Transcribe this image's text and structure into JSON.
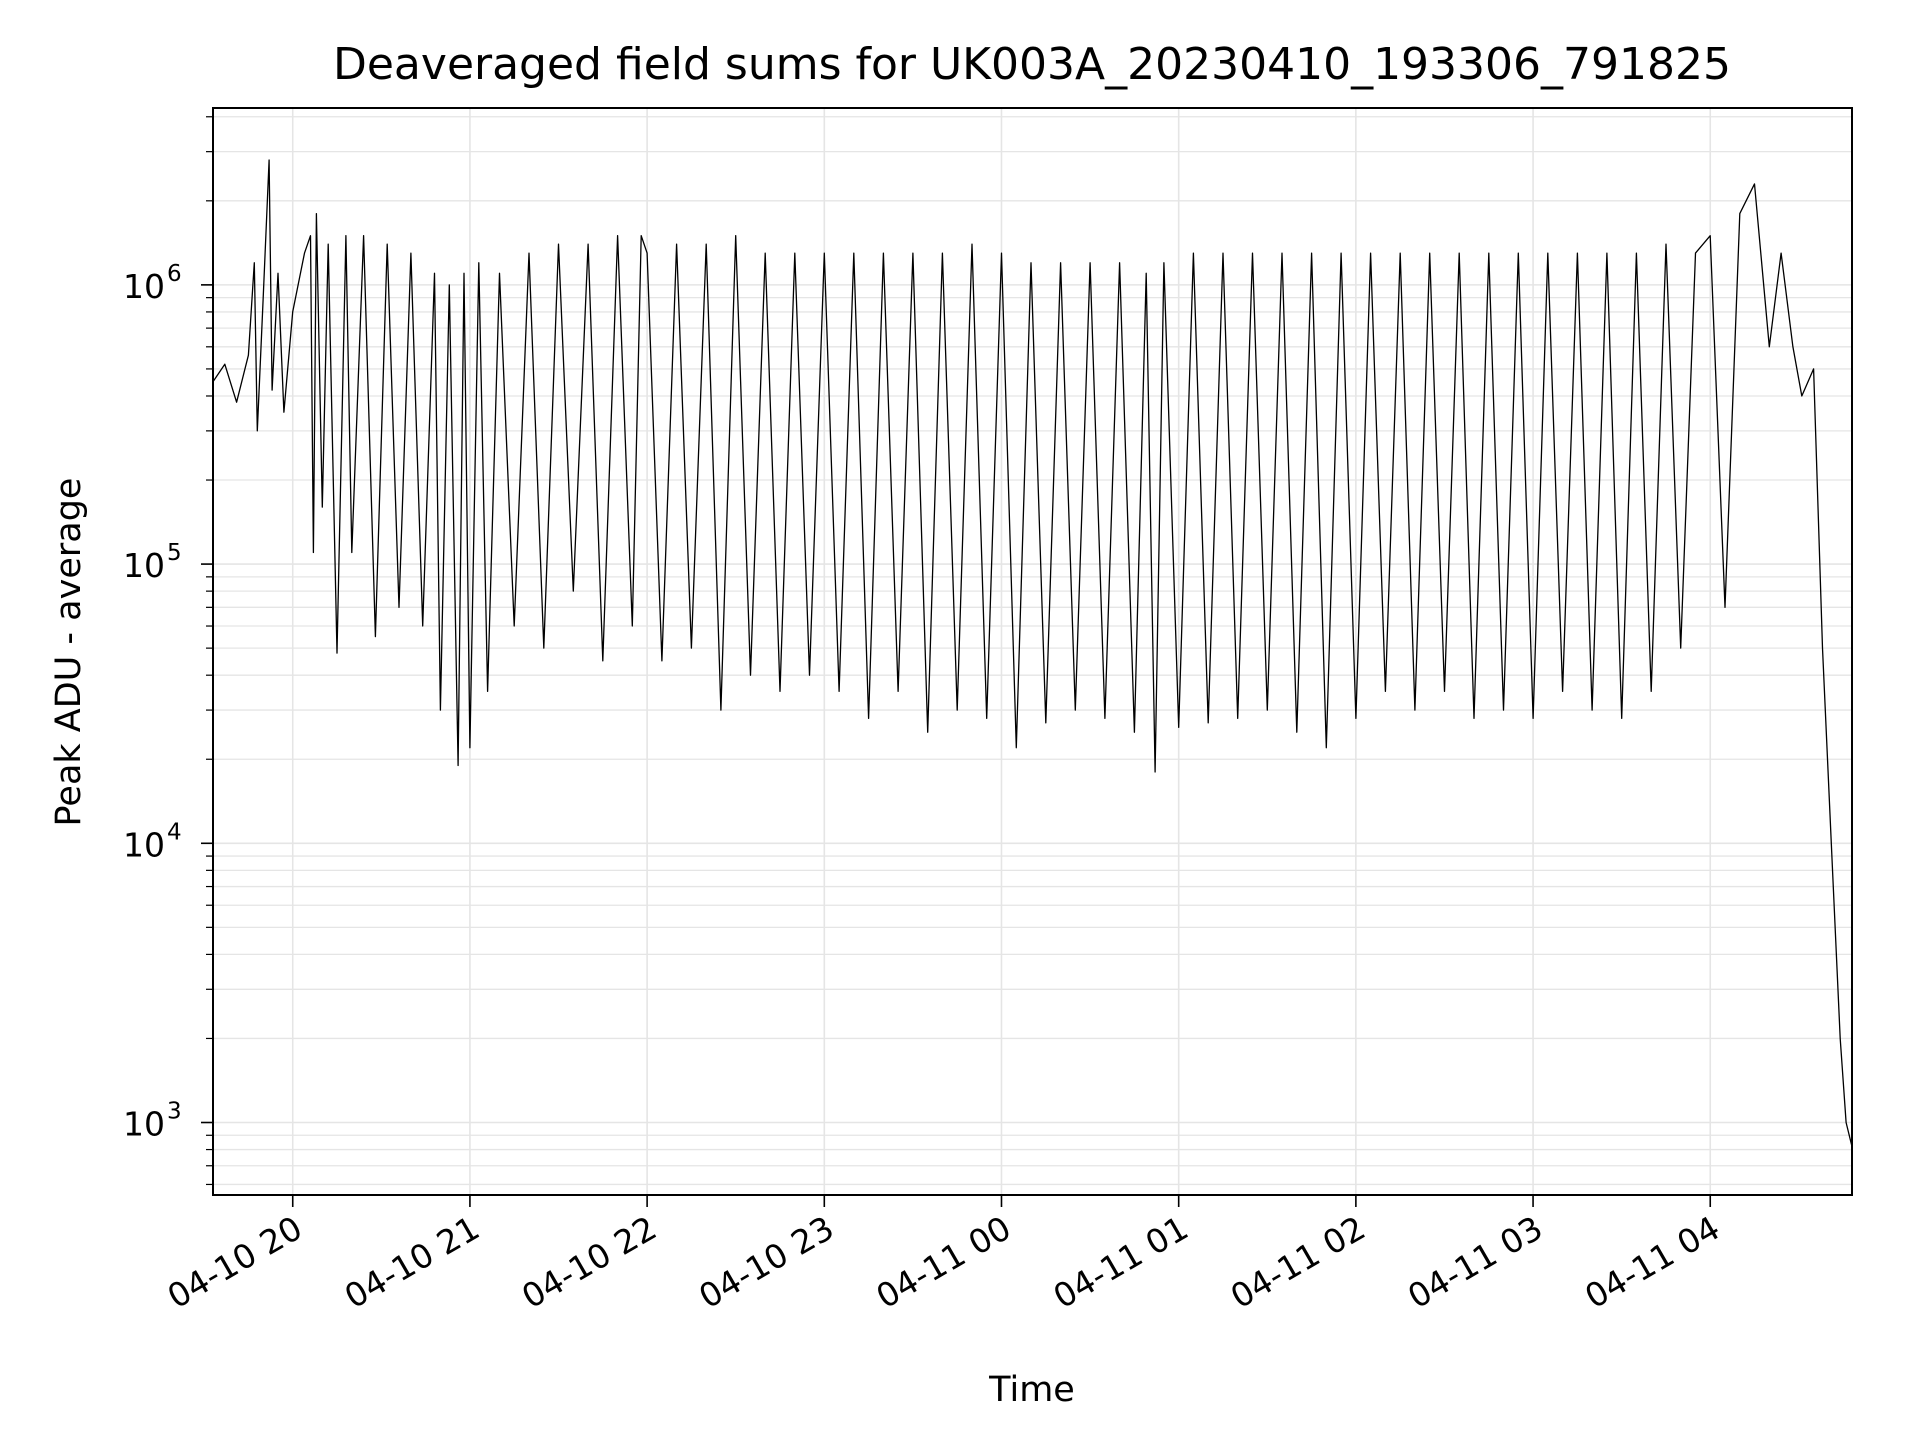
{
  "chart_data": {
    "type": "line",
    "title": "Deaveraged field sums for UK003A_20230410_193306_791825",
    "xlabel": "Time",
    "ylabel": "Peak ADU - average",
    "y_scale": "log",
    "ylim": [
      550,
      4300000
    ],
    "xlim": [
      "2023-04-10 19:33",
      "2023-04-11 04:48"
    ],
    "x_ticks": [
      {
        "value": "2023-04-10 20:00",
        "label": "04-10 20"
      },
      {
        "value": "2023-04-10 21:00",
        "label": "04-10 21"
      },
      {
        "value": "2023-04-10 22:00",
        "label": "04-10 22"
      },
      {
        "value": "2023-04-10 23:00",
        "label": "04-10 23"
      },
      {
        "value": "2023-04-11 00:00",
        "label": "04-11 00"
      },
      {
        "value": "2023-04-11 01:00",
        "label": "04-11 01"
      },
      {
        "value": "2023-04-11 02:00",
        "label": "04-11 02"
      },
      {
        "value": "2023-04-11 03:00",
        "label": "04-11 03"
      },
      {
        "value": "2023-04-11 04:00",
        "label": "04-11 04"
      }
    ],
    "y_ticks": [
      {
        "value": 1000,
        "base": "10",
        "exp": "3"
      },
      {
        "value": 10000,
        "base": "10",
        "exp": "4"
      },
      {
        "value": 100000,
        "base": "10",
        "exp": "5"
      },
      {
        "value": 1000000,
        "base": "10",
        "exp": "6"
      }
    ],
    "grid": true,
    "line_color": "#000000",
    "grid_color": "#e5e5e5",
    "series": [
      {
        "x": [
          "2023-04-10 19:33",
          "2023-04-10 19:37",
          "2023-04-10 19:41",
          "2023-04-10 19:45",
          "2023-04-10 19:47",
          "2023-04-10 19:48",
          "2023-04-10 19:50",
          "2023-04-10 19:52",
          "2023-04-10 19:53",
          "2023-04-10 19:55",
          "2023-04-10 19:57",
          "2023-04-10 20:00",
          "2023-04-10 20:04",
          "2023-04-10 20:06",
          "2023-04-10 20:07",
          "2023-04-10 20:08",
          "2023-04-10 20:10",
          "2023-04-10 20:12",
          "2023-04-10 20:15",
          "2023-04-10 20:18",
          "2023-04-10 20:20",
          "2023-04-10 20:24",
          "2023-04-10 20:28",
          "2023-04-10 20:32",
          "2023-04-10 20:36",
          "2023-04-10 20:40",
          "2023-04-10 20:44",
          "2023-04-10 20:48",
          "2023-04-10 20:50",
          "2023-04-10 20:53",
          "2023-04-10 20:56",
          "2023-04-10 20:58",
          "2023-04-10 21:00",
          "2023-04-10 21:03",
          "2023-04-10 21:06",
          "2023-04-10 21:10",
          "2023-04-10 21:15",
          "2023-04-10 21:20",
          "2023-04-10 21:25",
          "2023-04-10 21:30",
          "2023-04-10 21:35",
          "2023-04-10 21:40",
          "2023-04-10 21:45",
          "2023-04-10 21:50",
          "2023-04-10 21:55",
          "2023-04-10 21:58",
          "2023-04-10 22:00",
          "2023-04-10 22:05",
          "2023-04-10 22:10",
          "2023-04-10 22:15",
          "2023-04-10 22:20",
          "2023-04-10 22:25",
          "2023-04-10 22:30",
          "2023-04-10 22:35",
          "2023-04-10 22:40",
          "2023-04-10 22:45",
          "2023-04-10 22:50",
          "2023-04-10 22:55",
          "2023-04-10 23:00",
          "2023-04-10 23:05",
          "2023-04-10 23:10",
          "2023-04-10 23:15",
          "2023-04-10 23:20",
          "2023-04-10 23:25",
          "2023-04-10 23:30",
          "2023-04-10 23:35",
          "2023-04-10 23:40",
          "2023-04-10 23:45",
          "2023-04-10 23:50",
          "2023-04-10 23:55",
          "2023-04-11 00:00",
          "2023-04-11 00:05",
          "2023-04-11 00:10",
          "2023-04-11 00:15",
          "2023-04-11 00:20",
          "2023-04-11 00:25",
          "2023-04-11 00:30",
          "2023-04-11 00:35",
          "2023-04-11 00:40",
          "2023-04-11 00:45",
          "2023-04-11 00:49",
          "2023-04-11 00:52",
          "2023-04-11 00:55",
          "2023-04-11 01:00",
          "2023-04-11 01:05",
          "2023-04-11 01:10",
          "2023-04-11 01:15",
          "2023-04-11 01:20",
          "2023-04-11 01:25",
          "2023-04-11 01:30",
          "2023-04-11 01:35",
          "2023-04-11 01:40",
          "2023-04-11 01:45",
          "2023-04-11 01:50",
          "2023-04-11 01:55",
          "2023-04-11 02:00",
          "2023-04-11 02:05",
          "2023-04-11 02:10",
          "2023-04-11 02:15",
          "2023-04-11 02:20",
          "2023-04-11 02:25",
          "2023-04-11 02:30",
          "2023-04-11 02:35",
          "2023-04-11 02:40",
          "2023-04-11 02:45",
          "2023-04-11 02:50",
          "2023-04-11 02:55",
          "2023-04-11 03:00",
          "2023-04-11 03:05",
          "2023-04-11 03:10",
          "2023-04-11 03:15",
          "2023-04-11 03:20",
          "2023-04-11 03:25",
          "2023-04-11 03:30",
          "2023-04-11 03:35",
          "2023-04-11 03:40",
          "2023-04-11 03:45",
          "2023-04-11 03:50",
          "2023-04-11 03:55",
          "2023-04-11 04:00",
          "2023-04-11 04:05",
          "2023-04-11 04:10",
          "2023-04-11 04:15",
          "2023-04-11 04:20",
          "2023-04-11 04:24",
          "2023-04-11 04:28",
          "2023-04-11 04:31",
          "2023-04-11 04:35",
          "2023-04-11 04:38",
          "2023-04-11 04:41",
          "2023-04-11 04:44",
          "2023-04-11 04:46",
          "2023-04-11 04:48"
        ],
        "y": [
          450000,
          520000,
          380000,
          560000,
          1200000,
          300000,
          900000,
          2800000,
          420000,
          1100000,
          350000,
          800000,
          1300000,
          1500000,
          110000,
          1800000,
          160000,
          1400000,
          48000,
          1500000,
          110000,
          1500000,
          55000,
          1400000,
          70000,
          1300000,
          60000,
          1100000,
          30000,
          1000000,
          19000,
          1100000,
          22000,
          1200000,
          35000,
          1100000,
          60000,
          1300000,
          50000,
          1400000,
          80000,
          1400000,
          45000,
          1500000,
          60000,
          1500000,
          1300000,
          45000,
          1400000,
          50000,
          1400000,
          30000,
          1500000,
          40000,
          1300000,
          35000,
          1300000,
          40000,
          1300000,
          35000,
          1300000,
          28000,
          1300000,
          35000,
          1300000,
          25000,
          1300000,
          30000,
          1400000,
          28000,
          1300000,
          22000,
          1200000,
          27000,
          1200000,
          30000,
          1200000,
          28000,
          1200000,
          25000,
          1100000,
          18000,
          1200000,
          26000,
          1300000,
          27000,
          1300000,
          28000,
          1300000,
          30000,
          1300000,
          25000,
          1300000,
          22000,
          1300000,
          28000,
          1300000,
          35000,
          1300000,
          30000,
          1300000,
          35000,
          1300000,
          28000,
          1300000,
          30000,
          1300000,
          28000,
          1300000,
          35000,
          1300000,
          30000,
          1300000,
          28000,
          1300000,
          35000,
          1400000,
          50000,
          1300000,
          1500000,
          70000,
          1800000,
          2300000,
          600000,
          1300000,
          600000,
          400000,
          500000,
          50000,
          10000,
          2000,
          1000,
          820
        ]
      }
    ]
  }
}
